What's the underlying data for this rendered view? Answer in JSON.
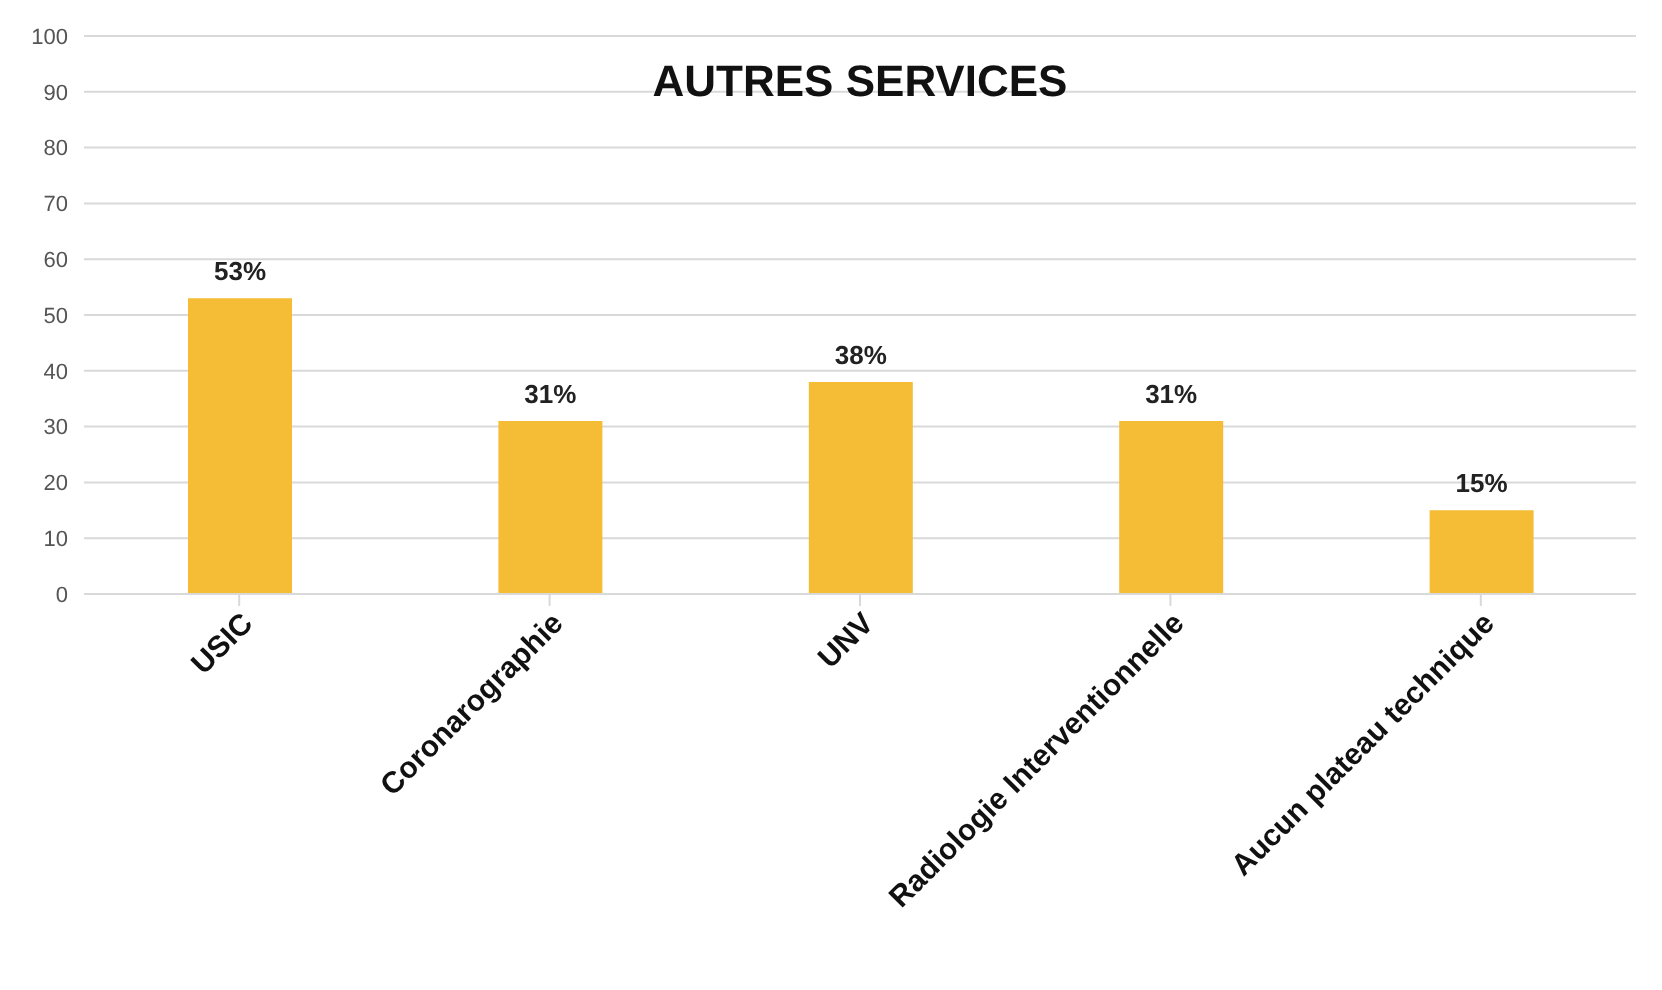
{
  "chart_data": {
    "type": "bar",
    "title": "AUTRES SERVICES",
    "categories": [
      "USIC",
      "Coronarographie",
      "UNV",
      "Radiologie Interventionnelle",
      "Aucun plateau technique"
    ],
    "values": [
      53,
      31,
      38,
      31,
      15
    ],
    "value_labels": [
      "53%",
      "31%",
      "38%",
      "31%",
      "15%"
    ],
    "color": "#f5bd35",
    "ylim": [
      0,
      100
    ],
    "yticks": [
      0,
      10,
      20,
      30,
      40,
      50,
      60,
      70,
      80,
      90,
      100
    ],
    "grid": "y"
  }
}
